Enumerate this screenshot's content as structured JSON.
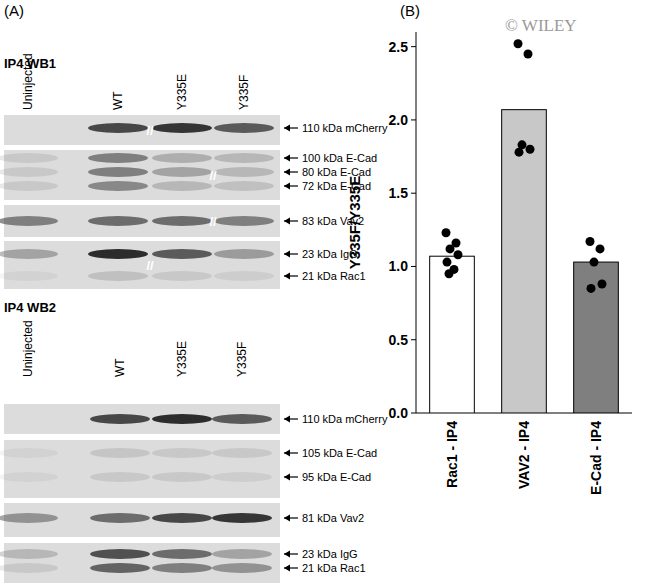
{
  "panel_a": {
    "label": "(A)",
    "splice_mark": "//",
    "blots": [
      {
        "title": "IP4 WB1",
        "lanes": [
          "Uninjected",
          "WT",
          "Y335E",
          "Y335F"
        ],
        "strips": [
          {
            "bands": [
              "110 kDa mCherry"
            ]
          },
          {
            "bands": [
              "100 kDa E-Cad",
              "80 kDa E-Cad",
              "72 kDa E-Cad"
            ]
          },
          {
            "bands": [
              "83 kDa Vav2"
            ]
          },
          {
            "bands": [
              "23 kDa IgG",
              "21 kDa Rac1"
            ]
          }
        ]
      },
      {
        "title": "IP4 WB2",
        "lanes": [
          "Uninjected",
          "WT",
          "Y335E",
          "Y335F"
        ],
        "strips": [
          {
            "bands": [
              "110 kDa mCherry"
            ]
          },
          {
            "bands": [
              "105 kDa E-Cad",
              "95 kDa E-Cad"
            ]
          },
          {
            "bands": [
              "81 kDa Vav2"
            ]
          },
          {
            "bands": [
              "23 kDa IgG",
              "21 kDa Rac1"
            ]
          }
        ]
      }
    ]
  },
  "watermark": "© WILEY",
  "chart_data": {
    "type": "bar",
    "label": "(B)",
    "y_label": "Y335F/Y335E",
    "categories": [
      "Rac1 - IP4",
      "VAV2 - IP4",
      "E-Cad - IP4"
    ],
    "values": [
      1.07,
      2.07,
      1.03
    ],
    "colors": [
      "#ffffff",
      "#c8c8c8",
      "#7f7f7f"
    ],
    "points": [
      [
        1.23,
        1.16,
        1.12,
        1.08,
        1.03,
        0.98,
        0.95
      ],
      [
        2.52,
        2.45,
        1.83,
        1.8,
        1.78
      ],
      [
        1.17,
        1.12,
        1.03,
        0.88,
        0.85
      ]
    ],
    "ylim": [
      0,
      2.6
    ],
    "yticks": [
      {
        "value": 0,
        "label": "0.0"
      },
      {
        "value": 0.5,
        "label": "0.5"
      },
      {
        "value": 1,
        "label": "1.0"
      },
      {
        "value": 1.5,
        "label": "1.5"
      },
      {
        "value": 2,
        "label": "2.0"
      },
      {
        "value": 2.5,
        "label": "2.5"
      }
    ],
    "grid": false
  }
}
